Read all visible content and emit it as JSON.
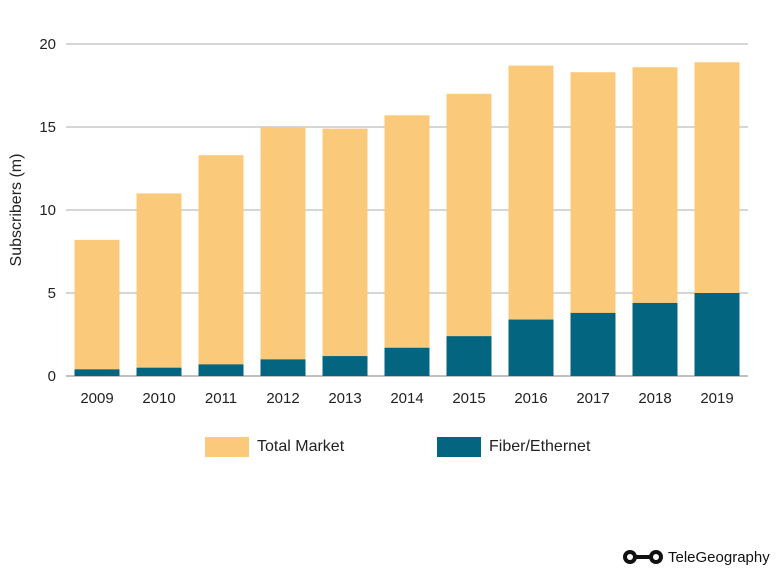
{
  "chart_data": {
    "type": "bar",
    "stacked": false,
    "overlay": true,
    "categories": [
      "2009",
      "2010",
      "2011",
      "2012",
      "2013",
      "2014",
      "2015",
      "2016",
      "2017",
      "2018",
      "2019"
    ],
    "series": [
      {
        "name": "Total Market",
        "color": "#FAC97A",
        "values": [
          8.2,
          11.0,
          13.3,
          15.0,
          14.9,
          15.7,
          17.0,
          18.7,
          18.3,
          18.6,
          18.9
        ]
      },
      {
        "name": "Fiber/Ethernet",
        "color": "#046580",
        "values": [
          0.4,
          0.5,
          0.7,
          1.0,
          1.2,
          1.7,
          2.4,
          3.4,
          3.8,
          4.4,
          5.0
        ]
      }
    ],
    "ylabel": "Subscribers (m)",
    "ylim": [
      0,
      20
    ],
    "yticks": [
      0,
      5,
      10,
      15,
      20
    ],
    "grid": true,
    "legend_position": "bottom"
  },
  "brand": {
    "name": "TeleGeography"
  }
}
